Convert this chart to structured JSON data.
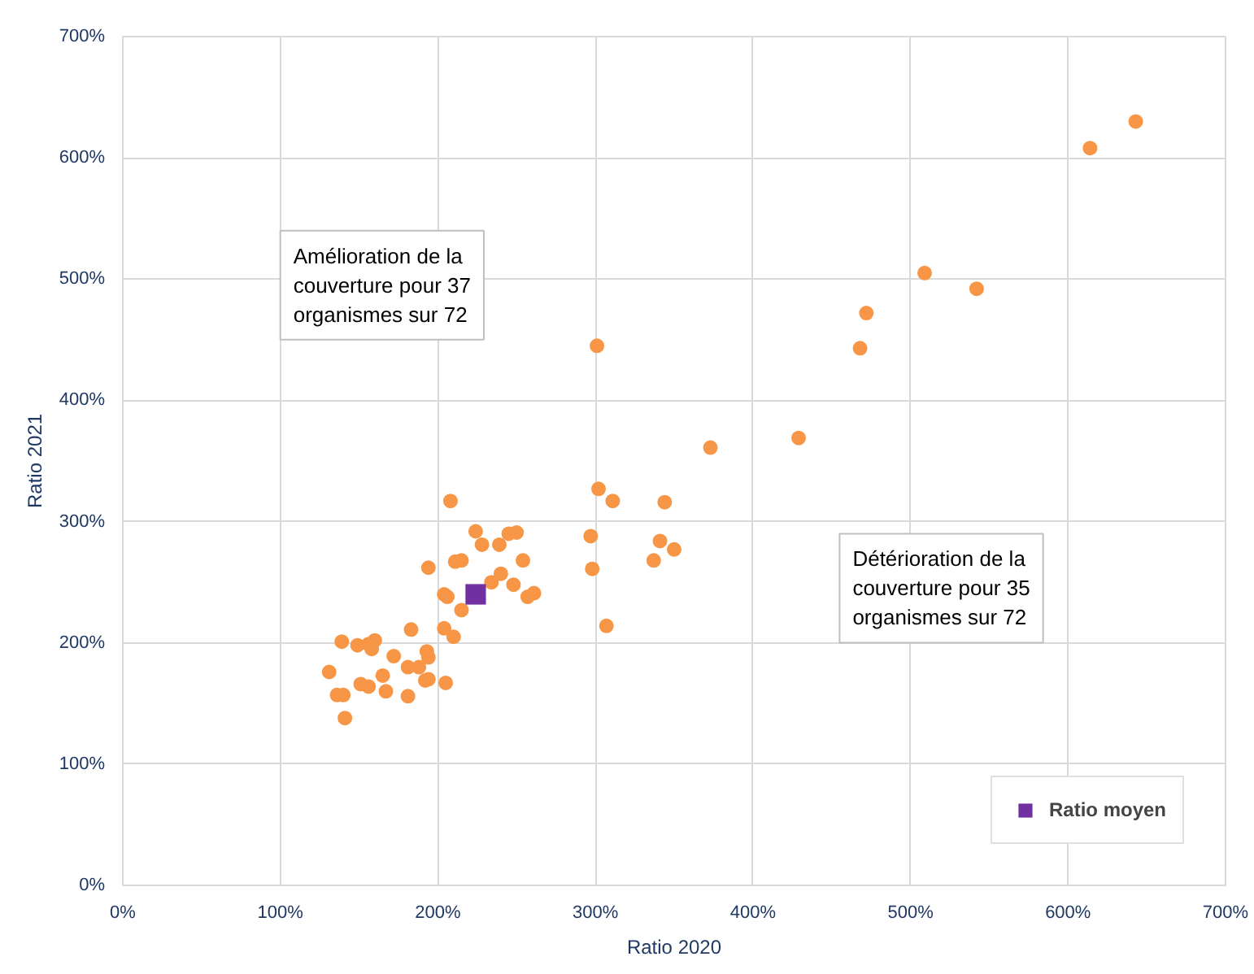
{
  "chart_data": {
    "type": "scatter",
    "xlabel": "Ratio 2020",
    "ylabel": "Ratio 2021",
    "xlim": [
      0,
      700
    ],
    "ylim": [
      0,
      700
    ],
    "xticks": [
      {
        "value": 0,
        "label": "0%"
      },
      {
        "value": 100,
        "label": "100%"
      },
      {
        "value": 200,
        "label": "200%"
      },
      {
        "value": 300,
        "label": "300%"
      },
      {
        "value": 400,
        "label": "400%"
      },
      {
        "value": 500,
        "label": "500%"
      },
      {
        "value": 600,
        "label": "600%"
      },
      {
        "value": 700,
        "label": "700%"
      }
    ],
    "yticks": [
      {
        "value": 0,
        "label": "0%"
      },
      {
        "value": 100,
        "label": "100%"
      },
      {
        "value": 200,
        "label": "200%"
      },
      {
        "value": 300,
        "label": "300%"
      },
      {
        "value": 400,
        "label": "400%"
      },
      {
        "value": 500,
        "label": "500%"
      },
      {
        "value": 600,
        "label": "600%"
      },
      {
        "value": 700,
        "label": "700%"
      }
    ],
    "grid": true,
    "legend": "bottom right",
    "annotations": [
      "Amélioration de la couverture pour 37 organismes sur 72",
      "Détérioration de la couverture pour 35 organismes sur 72"
    ],
    "series": [
      {
        "color": "#f79646",
        "marker": "circle",
        "x": [
          643,
          614,
          509,
          542,
          472,
          468,
          429,
          373,
          301,
          302,
          311,
          344,
          297,
          341,
          350,
          337,
          298,
          307,
          224,
          228,
          239,
          245,
          250,
          254,
          240,
          234,
          248,
          257,
          261,
          208,
          194,
          211,
          215,
          204,
          206,
          215,
          204,
          210,
          183,
          139,
          149,
          156,
          160,
          158,
          172,
          181,
          188,
          193,
          194,
          192,
          194,
          205,
          131,
          165,
          151,
          156,
          167,
          181,
          136,
          140,
          141
        ],
        "values": [
          630,
          608,
          505,
          492,
          472,
          443,
          369,
          361,
          445,
          327,
          317,
          316,
          288,
          284,
          277,
          268,
          261,
          214,
          292,
          281,
          281,
          290,
          291,
          268,
          257,
          250,
          248,
          238,
          241,
          317,
          262,
          267,
          268,
          240,
          238,
          227,
          212,
          205,
          211,
          201,
          198,
          199,
          202,
          195,
          189,
          180,
          180,
          193,
          188,
          169,
          170,
          167,
          176,
          173,
          166,
          164,
          160,
          156,
          157,
          157,
          138
        ]
      },
      {
        "name": "Ratio moyen",
        "color": "#7030a0",
        "marker": "square",
        "x": [
          224
        ],
        "values": [
          240
        ]
      }
    ]
  }
}
